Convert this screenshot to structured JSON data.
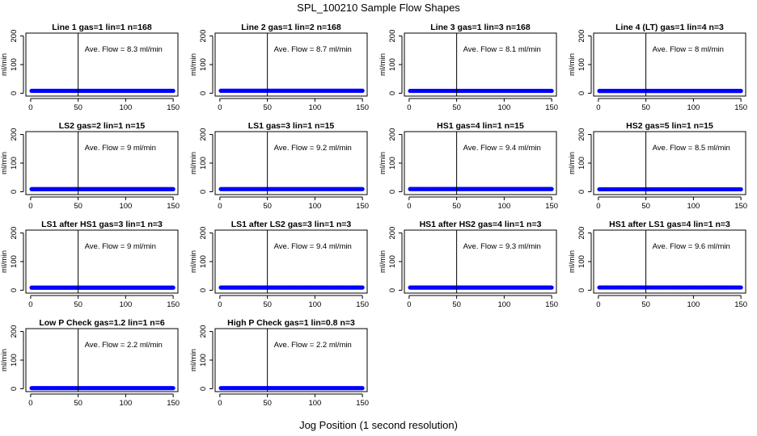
{
  "figure": {
    "title": "SPL_100210  Sample Flow Shapes",
    "xlabel": "Jog Position (1 second resolution)"
  },
  "colors": {
    "series": "#0000ff",
    "axis": "#000000",
    "background": "#ffffff"
  },
  "chart_data": [
    {
      "type": "scatter",
      "title": "Line 1 gas=1 lin=1 n=168",
      "ylabel": "ml/min",
      "annotation": "Ave. Flow = 8.3  ml/min",
      "vline": 50,
      "x_range": [
        1,
        150
      ],
      "y": 8.3,
      "xlim": [
        -5,
        155
      ],
      "ylim": [
        -10,
        210
      ],
      "xticks": [
        0,
        50,
        100,
        150
      ],
      "yticks": [
        0,
        100,
        200
      ]
    },
    {
      "type": "scatter",
      "title": "Line 2 gas=1 lin=2 n=168",
      "ylabel": "ml/min",
      "annotation": "Ave. Flow = 8.7  ml/min",
      "vline": 50,
      "x_range": [
        1,
        150
      ],
      "y": 8.7,
      "xlim": [
        -5,
        155
      ],
      "ylim": [
        -10,
        210
      ],
      "xticks": [
        0,
        50,
        100,
        150
      ],
      "yticks": [
        0,
        100,
        200
      ]
    },
    {
      "type": "scatter",
      "title": "Line 3 gas=1 lin=3 n=168",
      "ylabel": "ml/min",
      "annotation": "Ave. Flow = 8.1  ml/min",
      "vline": 50,
      "x_range": [
        1,
        150
      ],
      "y": 8.1,
      "xlim": [
        -5,
        155
      ],
      "ylim": [
        -10,
        210
      ],
      "xticks": [
        0,
        50,
        100,
        150
      ],
      "yticks": [
        0,
        100,
        200
      ]
    },
    {
      "type": "scatter",
      "title": "Line 4 (LT) gas=1 lin=4 n=3",
      "ylabel": "ml/min",
      "annotation": "Ave. Flow = 8  ml/min",
      "vline": 50,
      "x_range": [
        1,
        150
      ],
      "y": 8,
      "xlim": [
        -5,
        155
      ],
      "ylim": [
        -10,
        210
      ],
      "xticks": [
        0,
        50,
        100,
        150
      ],
      "yticks": [
        0,
        100,
        200
      ]
    },
    {
      "type": "scatter",
      "title": "LS2 gas=2 lin=1 n=15",
      "ylabel": "ml/min",
      "annotation": "Ave. Flow = 9  ml/min",
      "vline": 50,
      "x_range": [
        1,
        150
      ],
      "y": 9,
      "xlim": [
        -5,
        155
      ],
      "ylim": [
        -10,
        210
      ],
      "xticks": [
        0,
        50,
        100,
        150
      ],
      "yticks": [
        0,
        100,
        200
      ]
    },
    {
      "type": "scatter",
      "title": "LS1 gas=3 lin=1 n=15",
      "ylabel": "ml/min",
      "annotation": "Ave. Flow = 9.2  ml/min",
      "vline": 50,
      "x_range": [
        1,
        150
      ],
      "y": 9.2,
      "xlim": [
        -5,
        155
      ],
      "ylim": [
        -10,
        210
      ],
      "xticks": [
        0,
        50,
        100,
        150
      ],
      "yticks": [
        0,
        100,
        200
      ]
    },
    {
      "type": "scatter",
      "title": "HS1 gas=4 lin=1 n=15",
      "ylabel": "ml/min",
      "annotation": "Ave. Flow = 9.4  ml/min",
      "vline": 50,
      "x_range": [
        1,
        150
      ],
      "y": 9.4,
      "xlim": [
        -5,
        155
      ],
      "ylim": [
        -10,
        210
      ],
      "xticks": [
        0,
        50,
        100,
        150
      ],
      "yticks": [
        0,
        100,
        200
      ]
    },
    {
      "type": "scatter",
      "title": "HS2 gas=5 lin=1 n=15",
      "ylabel": "ml/min",
      "annotation": "Ave. Flow = 8.5  ml/min",
      "vline": 50,
      "x_range": [
        1,
        150
      ],
      "y": 8.5,
      "xlim": [
        -5,
        155
      ],
      "ylim": [
        -10,
        210
      ],
      "xticks": [
        0,
        50,
        100,
        150
      ],
      "yticks": [
        0,
        100,
        200
      ]
    },
    {
      "type": "scatter",
      "title": "LS1 after HS1 gas=3 lin=1 n=3",
      "ylabel": "ml/min",
      "annotation": "Ave. Flow = 9  ml/min",
      "vline": 50,
      "x_range": [
        1,
        150
      ],
      "y": 9,
      "xlim": [
        -5,
        155
      ],
      "ylim": [
        -10,
        210
      ],
      "xticks": [
        0,
        50,
        100,
        150
      ],
      "yticks": [
        0,
        100,
        200
      ]
    },
    {
      "type": "scatter",
      "title": "LS1 after LS2 gas=3 lin=1 n=3",
      "ylabel": "ml/min",
      "annotation": "Ave. Flow = 9.4  ml/min",
      "vline": 50,
      "x_range": [
        1,
        150
      ],
      "y": 9.4,
      "xlim": [
        -5,
        155
      ],
      "ylim": [
        -10,
        210
      ],
      "xticks": [
        0,
        50,
        100,
        150
      ],
      "yticks": [
        0,
        100,
        200
      ]
    },
    {
      "type": "scatter",
      "title": "HS1 after HS2 gas=4 lin=1 n=3",
      "ylabel": "ml/min",
      "annotation": "Ave. Flow = 9.3  ml/min",
      "vline": 50,
      "x_range": [
        1,
        150
      ],
      "y": 9.3,
      "xlim": [
        -5,
        155
      ],
      "ylim": [
        -10,
        210
      ],
      "xticks": [
        0,
        50,
        100,
        150
      ],
      "yticks": [
        0,
        100,
        200
      ]
    },
    {
      "type": "scatter",
      "title": "HS1 after LS1 gas=4 lin=1 n=3",
      "ylabel": "ml/min",
      "annotation": "Ave. Flow = 9.6  ml/min",
      "vline": 50,
      "x_range": [
        1,
        150
      ],
      "y": 9.6,
      "xlim": [
        -5,
        155
      ],
      "ylim": [
        -10,
        210
      ],
      "xticks": [
        0,
        50,
        100,
        150
      ],
      "yticks": [
        0,
        100,
        200
      ]
    },
    {
      "type": "scatter",
      "title": "Low P Check gas=1.2 lin=1 n=6",
      "ylabel": "ml/min",
      "annotation": "Ave. Flow = 2.2  ml/min",
      "vline": 50,
      "x_range": [
        1,
        150
      ],
      "y": 2.2,
      "xlim": [
        -5,
        155
      ],
      "ylim": [
        -10,
        210
      ],
      "xticks": [
        0,
        50,
        100,
        150
      ],
      "yticks": [
        0,
        100,
        200
      ]
    },
    {
      "type": "scatter",
      "title": "High P Check gas=1 lin=0.8 n=3",
      "ylabel": "ml/min",
      "annotation": "Ave. Flow = 2.2  ml/min",
      "vline": 50,
      "x_range": [
        1,
        150
      ],
      "y": 2.2,
      "xlim": [
        -5,
        155
      ],
      "ylim": [
        -10,
        210
      ],
      "xticks": [
        0,
        50,
        100,
        150
      ],
      "yticks": [
        0,
        100,
        200
      ]
    }
  ]
}
